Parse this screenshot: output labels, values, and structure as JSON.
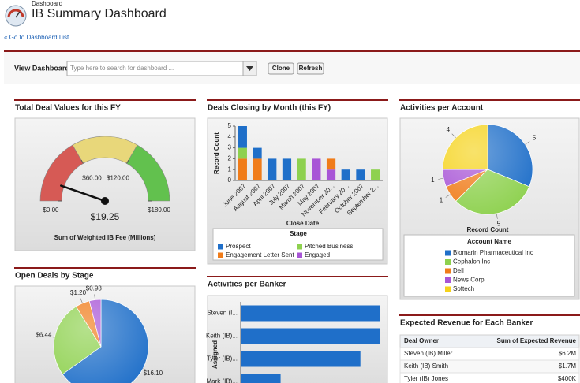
{
  "header": {
    "breadcrumb": "Dashboard",
    "title": "IB Summary Dashboard",
    "back_link": "« Go to Dashboard List"
  },
  "toolbar": {
    "label": "View Dashboard",
    "search_placeholder": "Type here to search for dashboard ...",
    "buttons": [
      "Clone",
      "Refresh"
    ]
  },
  "chart_data": [
    {
      "type": "gauge",
      "title": "Total Deal Values for this FY",
      "value": 19.25,
      "value_label": "$19.25",
      "xlabel": "Sum of Weighted IB Fee (Millions)",
      "xlim": [
        0,
        180
      ],
      "xticks": [
        {
          "value": 0,
          "label": "$0.00"
        },
        {
          "value": 60,
          "label": "$60.00"
        },
        {
          "value": 120,
          "label": "$120.00"
        },
        {
          "value": 180,
          "label": "$180.00"
        }
      ],
      "bands": [
        {
          "from": 0,
          "to": 60,
          "color": "#d65a55"
        },
        {
          "from": 60,
          "to": 120,
          "color": "#e8d77a"
        },
        {
          "from": 120,
          "to": 180,
          "color": "#62c14e"
        }
      ]
    },
    {
      "type": "stacked_bar",
      "title": "Deals Closing by Month (this FY)",
      "xlabel": "Close Date",
      "ylabel": "Record Count",
      "legend_title": "Stage",
      "categories": [
        "June 2007",
        "August 2007",
        "April 2007",
        "July 2007",
        "March 2007",
        "May 2007",
        "November 20...",
        "February 20...",
        "October 2007",
        "September 2..."
      ],
      "ylim": [
        0,
        5
      ],
      "yticks": [
        0,
        1,
        2,
        3,
        4,
        5
      ],
      "series": [
        {
          "name": "Prospect",
          "color": "#1f6fc9",
          "values": [
            2,
            1,
            2,
            2,
            0,
            0,
            0,
            1,
            1,
            0
          ]
        },
        {
          "name": "Pitched Business",
          "color": "#8ed14f",
          "values": [
            1,
            0,
            0,
            0,
            2,
            0,
            0,
            0,
            0,
            1
          ]
        },
        {
          "name": "Engagement Letter Sent",
          "color": "#f07c1a",
          "values": [
            2,
            2,
            0,
            0,
            0,
            0,
            1,
            0,
            0,
            0
          ]
        },
        {
          "name": "Engaged",
          "color": "#a855d6",
          "values": [
            0,
            0,
            0,
            0,
            0,
            2,
            1,
            0,
            0,
            0
          ]
        }
      ]
    },
    {
      "type": "pie",
      "title": "Activities per Account",
      "subtitle": "Record Count",
      "legend_title": "Account Name",
      "categories": [
        "Biomarin Pharmaceutical Inc",
        "Cephalon Inc",
        "Dell",
        "News Corp",
        "Softech"
      ],
      "values": [
        5,
        5,
        1,
        1,
        4
      ],
      "colors": [
        "#1f6fc9",
        "#8ed14f",
        "#f07c1a",
        "#a855d6",
        "#f5d31b"
      ]
    },
    {
      "type": "pie",
      "title": "Open Deals by Stage",
      "categories": [
        "Prospect",
        "Pitched Business",
        "Engagement Letter Sent",
        "Engaged"
      ],
      "values": [
        16.1,
        6.44,
        1.2,
        0.98
      ],
      "value_labels": [
        "$16.10",
        "$6.44",
        "$1.20",
        "$0.98"
      ],
      "colors": [
        "#1f6fc9",
        "#8ed14f",
        "#f07c1a",
        "#a855d6"
      ]
    },
    {
      "type": "hbar",
      "title": "Activities per Banker",
      "ylabel": "Assigned",
      "categories": [
        "Steven (I...",
        "Keith (IB)...",
        "Tyler (IB)...",
        "Mark (IB)..."
      ],
      "values": [
        7,
        7,
        6,
        2
      ],
      "xlim": [
        0,
        7
      ],
      "color": "#1f6fc9"
    }
  ],
  "table": {
    "title": "Expected Revenue for Each Banker",
    "columns": [
      "Deal Owner",
      "Sum of Expected Revenue"
    ],
    "rows": [
      [
        "Steven (IB) Miller",
        "$6.2M"
      ],
      [
        "Keith (IB) Smith",
        "$1.7M"
      ],
      [
        "Tyler (IB) Jones",
        "$400K"
      ]
    ]
  }
}
